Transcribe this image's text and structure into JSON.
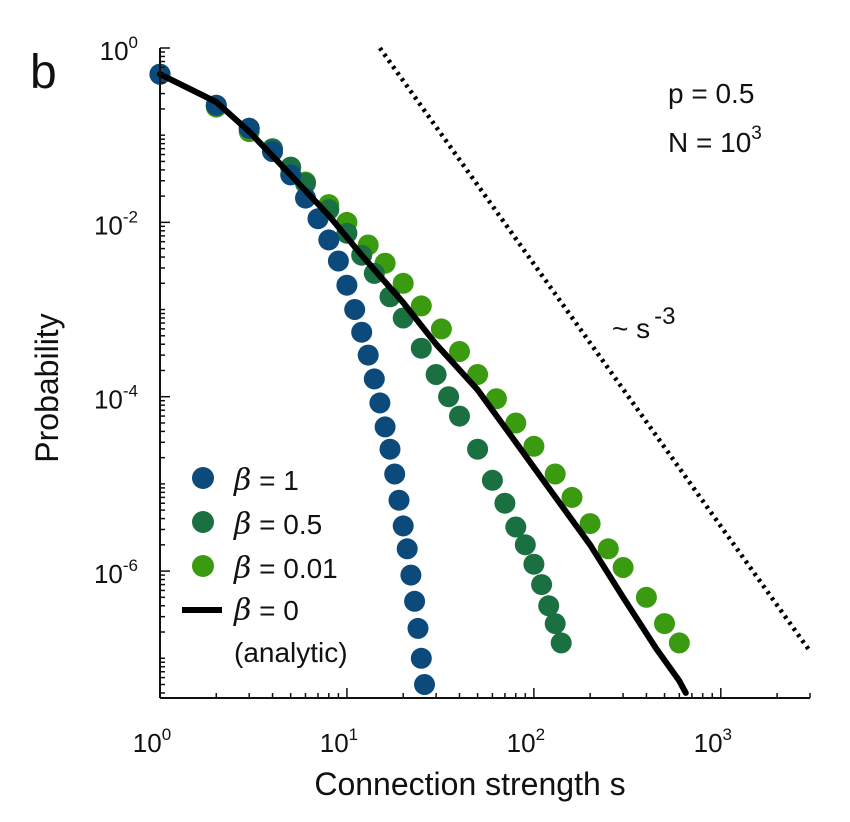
{
  "chart_data": {
    "type": "scatter",
    "panel_label": "b",
    "xlabel": "Connection strength s",
    "ylabel": "Probability",
    "xscale": "log",
    "yscale": "log",
    "xlim": [
      1,
      3000
    ],
    "ylim": [
      3.5e-08,
      1
    ],
    "x_ticks": [
      {
        "base": "10",
        "exp": "0",
        "value": 1
      },
      {
        "base": "10",
        "exp": "1",
        "value": 10
      },
      {
        "base": "10",
        "exp": "2",
        "value": 100
      },
      {
        "base": "10",
        "exp": "3",
        "value": 1000
      }
    ],
    "y_ticks": [
      {
        "base": "10",
        "exp": "0",
        "value": 1
      },
      {
        "base": "10",
        "exp": "-2",
        "value": 0.01
      },
      {
        "base": "10",
        "exp": "-4",
        "value": 0.0001
      },
      {
        "base": "10",
        "exp": "-6",
        "value": 1e-06
      }
    ],
    "annotations": {
      "p_label": "p = 0.5",
      "n_label_base": "N = 10",
      "n_label_exp": "3",
      "slope_label_base": "~ s",
      "slope_label_exp": "-3"
    },
    "legend_position": "bottom-left",
    "legend": [
      {
        "symbol": "β",
        "text": " = 1",
        "marker": "dot",
        "color": "#0d4a7c"
      },
      {
        "symbol": "β",
        "text": " = 0.5",
        "marker": "dot",
        "color": "#1a7040"
      },
      {
        "symbol": "β",
        "text": " = 0.01",
        "marker": "dot",
        "color": "#3a9a10"
      },
      {
        "symbol": "β",
        "text": " = 0",
        "subtext": "(analytic)",
        "marker": "line",
        "color": "#000000"
      }
    ],
    "series": [
      {
        "name": "β = 1",
        "color": "#0d4a7c",
        "x": [
          1,
          2,
          3,
          4,
          5,
          6,
          7,
          8,
          9,
          10,
          11,
          12,
          13,
          14,
          15,
          16,
          17,
          18,
          19,
          20,
          21,
          22,
          23,
          24,
          25,
          26
        ],
        "y": [
          0.5,
          0.22,
          0.12,
          0.065,
          0.035,
          0.019,
          0.011,
          0.0063,
          0.0036,
          0.0019,
          0.001,
          0.00055,
          0.0003,
          0.00016,
          8.5e-05,
          4.5e-05,
          2.5e-05,
          1.3e-05,
          6.5e-06,
          3.3e-06,
          1.8e-06,
          9e-07,
          4.5e-07,
          2.2e-07,
          1e-07,
          5e-08
        ]
      },
      {
        "name": "β = 0.5",
        "color": "#1a7040",
        "x": [
          1,
          2,
          3,
          4,
          5,
          6,
          8,
          10,
          12,
          14,
          17,
          20,
          25,
          30,
          35,
          40,
          50,
          60,
          70,
          80,
          90,
          100,
          110,
          120,
          130,
          140
        ],
        "y": [
          0.5,
          0.22,
          0.12,
          0.07,
          0.043,
          0.028,
          0.014,
          0.0075,
          0.0042,
          0.0026,
          0.0014,
          0.0008,
          0.00036,
          0.00018,
          0.0001,
          6e-05,
          2.5e-05,
          1.1e-05,
          6e-06,
          3.2e-06,
          2e-06,
          1.2e-06,
          7e-07,
          4e-07,
          2.5e-07,
          1.5e-07
        ]
      },
      {
        "name": "β = 0.01",
        "color": "#3a9a10",
        "x": [
          1,
          2,
          3,
          4,
          5,
          6,
          8,
          10,
          13,
          16,
          20,
          25,
          32,
          40,
          50,
          63,
          80,
          100,
          130,
          160,
          200,
          250,
          300,
          400,
          500,
          600
        ],
        "y": [
          0.5,
          0.21,
          0.11,
          0.065,
          0.042,
          0.029,
          0.016,
          0.01,
          0.0055,
          0.0034,
          0.002,
          0.0011,
          0.0006,
          0.00033,
          0.00018,
          9.5e-05,
          5e-05,
          2.7e-05,
          1.3e-05,
          7e-06,
          3.5e-06,
          1.8e-06,
          1.1e-06,
          5e-07,
          2.5e-07,
          1.5e-07
        ]
      },
      {
        "name": "β = 0 (analytic)",
        "color": "#000000",
        "x": [
          1,
          2,
          3,
          5,
          8,
          12,
          20,
          30,
          50,
          80,
          120,
          200,
          300,
          450,
          600,
          650
        ],
        "y": [
          0.5,
          0.24,
          0.11,
          0.035,
          0.012,
          0.0042,
          0.0012,
          0.0004,
          0.00012,
          3e-05,
          9e-06,
          2e-06,
          5e-07,
          1.3e-07,
          5.5e-08,
          4e-08
        ]
      }
    ],
    "reference_line": {
      "label": "~ s -3",
      "x": [
        15,
        3000
      ],
      "y": [
        1,
        1.2e-07
      ],
      "style": "dotted",
      "color": "#000000"
    }
  }
}
